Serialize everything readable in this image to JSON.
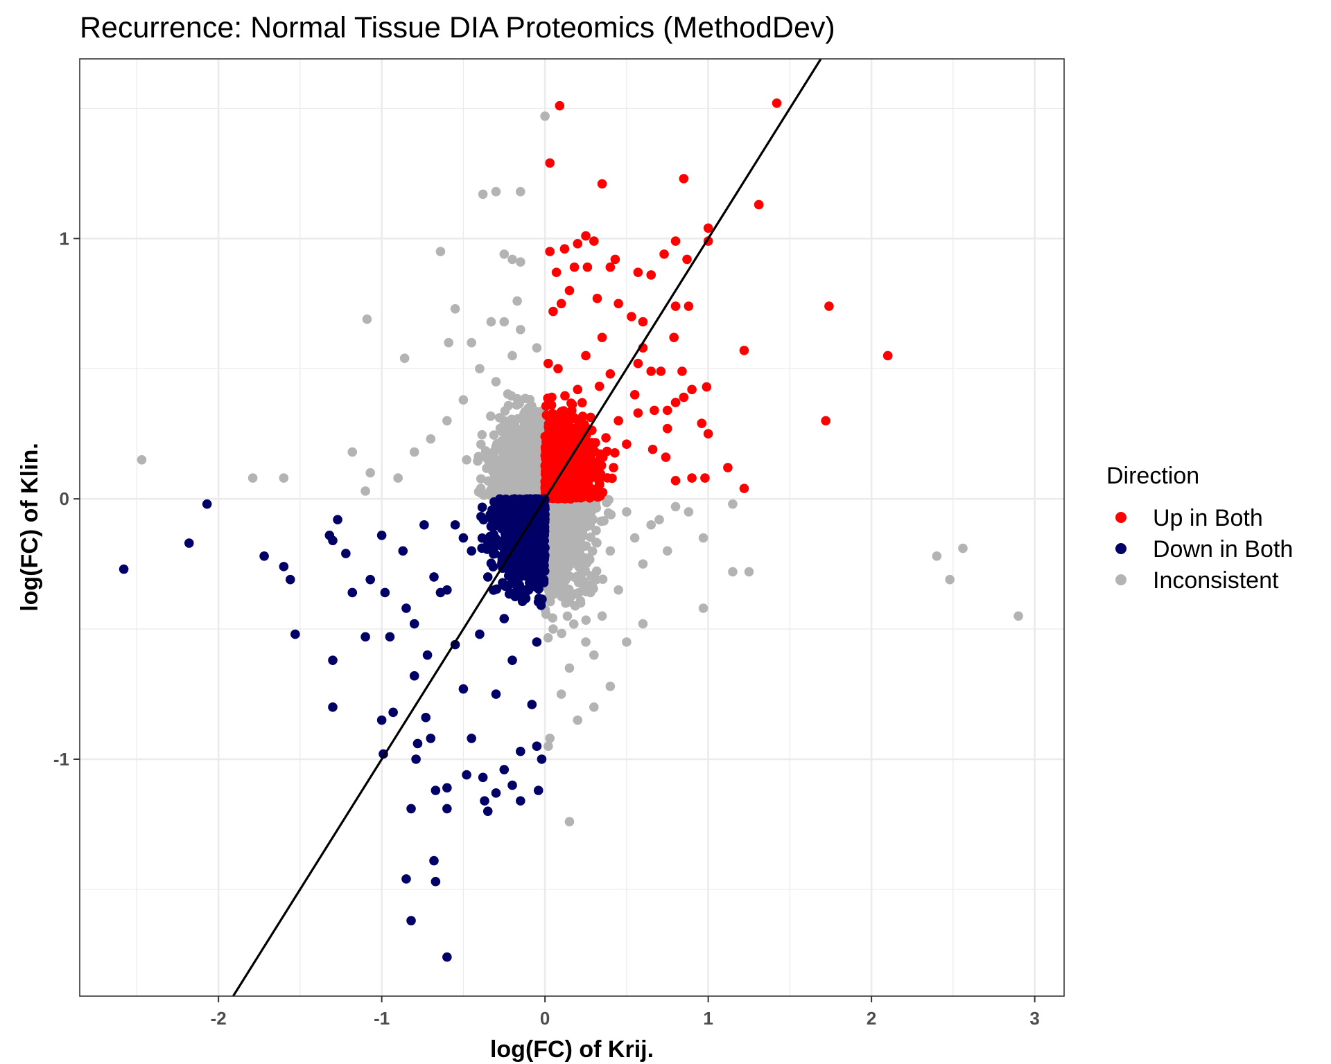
{
  "chart_data": {
    "type": "scatter",
    "title": "Recurrence: Normal Tissue DIA Proteomics (MethodDev)",
    "xlabel": "log(FC) of Krij.",
    "ylabel": "log(FC) of Klin.",
    "xlim": [
      -2.85,
      3.18
    ],
    "ylim": [
      -1.91,
      1.69
    ],
    "x_ticks": [
      -2,
      -1,
      0,
      1,
      2,
      3
    ],
    "x_tick_labels": [
      "-2",
      "-1",
      "0",
      "1",
      "2",
      "3"
    ],
    "y_ticks": [
      -1,
      0,
      1
    ],
    "y_tick_labels": [
      "-1",
      "0",
      "1"
    ],
    "grid": true,
    "legend": {
      "title": "Direction",
      "placement": "right",
      "entries": [
        "Up in Both",
        "Down in Both",
        "Inconsistent"
      ]
    },
    "reference_line": {
      "type": "abline",
      "intercept": 0,
      "slope": 1,
      "color": "#000000"
    },
    "series": [
      {
        "name": "Up in Both",
        "color": "#ff0000",
        "points": [
          [
            0.09,
            1.51
          ],
          [
            0.03,
            1.29
          ],
          [
            0.35,
            1.21
          ],
          [
            0.85,
            1.23
          ],
          [
            1.42,
            1.52
          ],
          [
            1.31,
            1.13
          ],
          [
            1.0,
            1.04
          ],
          [
            1.0,
            0.99
          ],
          [
            0.25,
            1.01
          ],
          [
            0.3,
            0.99
          ],
          [
            0.2,
            0.98
          ],
          [
            0.12,
            0.96
          ],
          [
            0.03,
            0.95
          ],
          [
            0.8,
            0.99
          ],
          [
            0.73,
            0.94
          ],
          [
            0.87,
            0.92
          ],
          [
            0.43,
            0.92
          ],
          [
            0.07,
            0.87
          ],
          [
            0.18,
            0.89
          ],
          [
            0.26,
            0.89
          ],
          [
            0.4,
            0.89
          ],
          [
            0.57,
            0.87
          ],
          [
            0.65,
            0.86
          ],
          [
            1.74,
            0.74
          ],
          [
            2.1,
            0.55
          ],
          [
            1.22,
            0.57
          ],
          [
            1.72,
            0.3
          ],
          [
            0.8,
            0.74
          ],
          [
            0.88,
            0.74
          ],
          [
            0.79,
            0.62
          ],
          [
            0.57,
            0.52
          ],
          [
            0.65,
            0.49
          ],
          [
            0.71,
            0.49
          ],
          [
            0.84,
            0.49
          ],
          [
            0.99,
            0.43
          ],
          [
            0.9,
            0.42
          ],
          [
            0.85,
            0.39
          ],
          [
            0.8,
            0.37
          ],
          [
            0.96,
            0.29
          ],
          [
            0.57,
            0.33
          ],
          [
            0.67,
            0.34
          ],
          [
            0.75,
            0.34
          ],
          [
            1.0,
            0.25
          ],
          [
            1.12,
            0.12
          ],
          [
            1.22,
            0.04
          ],
          [
            0.98,
            0.08
          ],
          [
            0.9,
            0.08
          ],
          [
            0.8,
            0.07
          ],
          [
            0.74,
            0.16
          ],
          [
            0.66,
            0.19
          ],
          [
            0.5,
            0.21
          ],
          [
            0.75,
            0.27
          ],
          [
            0.53,
            0.7
          ],
          [
            0.6,
            0.68
          ],
          [
            0.45,
            0.75
          ],
          [
            0.32,
            0.77
          ],
          [
            0.15,
            0.8
          ],
          [
            0.1,
            0.75
          ],
          [
            0.05,
            0.72
          ],
          [
            0.25,
            0.55
          ],
          [
            0.35,
            0.62
          ],
          [
            0.4,
            0.48
          ],
          [
            0.2,
            0.42
          ],
          [
            0.15,
            0.3
          ],
          [
            0.08,
            0.25
          ],
          [
            0.3,
            0.18
          ],
          [
            0.45,
            0.3
          ],
          [
            0.55,
            0.4
          ],
          [
            0.6,
            0.58
          ],
          [
            0.12,
            0.05
          ],
          [
            0.05,
            0.1
          ],
          [
            0.22,
            0.08
          ],
          [
            0.42,
            0.12
          ],
          [
            0.02,
            0.52
          ],
          [
            0.04,
            0.36
          ],
          [
            0.08,
            0.5
          ]
        ],
        "dense_region": {
          "x_range": [
            0.0,
            0.55
          ],
          "y_range": [
            0.0,
            0.55
          ],
          "approx_points": 900
        }
      },
      {
        "name": "Down in Both",
        "color": "#000066",
        "points": [
          [
            -2.58,
            -0.27
          ],
          [
            -2.07,
            -0.02
          ],
          [
            -2.18,
            -0.17
          ],
          [
            -1.72,
            -0.22
          ],
          [
            -1.6,
            -0.26
          ],
          [
            -1.56,
            -0.31
          ],
          [
            -1.53,
            -0.52
          ],
          [
            -1.32,
            -0.14
          ],
          [
            -1.3,
            -0.16
          ],
          [
            -1.27,
            -0.08
          ],
          [
            -1.22,
            -0.21
          ],
          [
            -1.18,
            -0.36
          ],
          [
            -1.3,
            -0.62
          ],
          [
            -1.3,
            -0.8
          ],
          [
            -1.1,
            -0.53
          ],
          [
            -1.07,
            -0.31
          ],
          [
            -1.0,
            -0.14
          ],
          [
            -0.98,
            -0.36
          ],
          [
            -0.95,
            -0.53
          ],
          [
            -1.0,
            -0.85
          ],
          [
            -0.99,
            -0.98
          ],
          [
            -0.93,
            -0.82
          ],
          [
            -0.87,
            -0.2
          ],
          [
            -0.85,
            -0.42
          ],
          [
            -0.8,
            -0.48
          ],
          [
            -0.8,
            -0.68
          ],
          [
            -0.78,
            -0.94
          ],
          [
            -0.79,
            -1.0
          ],
          [
            -0.82,
            -1.19
          ],
          [
            -0.85,
            -1.46
          ],
          [
            -0.82,
            -1.62
          ],
          [
            -0.68,
            -1.39
          ],
          [
            -0.67,
            -1.47
          ],
          [
            -0.6,
            -1.76
          ],
          [
            -0.67,
            -1.12
          ],
          [
            -0.6,
            -1.11
          ],
          [
            -0.6,
            -1.19
          ],
          [
            -0.7,
            -0.92
          ],
          [
            -0.73,
            -0.84
          ],
          [
            -0.72,
            -0.6
          ],
          [
            -0.68,
            -0.3
          ],
          [
            -0.74,
            -0.1
          ],
          [
            -0.64,
            -0.36
          ],
          [
            -0.55,
            -0.56
          ],
          [
            -0.5,
            -0.73
          ],
          [
            -0.45,
            -0.92
          ],
          [
            -0.48,
            -1.06
          ],
          [
            -0.38,
            -1.07
          ],
          [
            -0.37,
            -1.16
          ],
          [
            -0.35,
            -1.2
          ],
          [
            -0.3,
            -1.13
          ],
          [
            -0.25,
            -1.04
          ],
          [
            -0.2,
            -1.1
          ],
          [
            -0.15,
            -1.16
          ],
          [
            -0.04,
            -1.12
          ],
          [
            -0.15,
            -0.97
          ],
          [
            -0.05,
            -0.95
          ],
          [
            -0.02,
            -1.0
          ],
          [
            -0.08,
            -0.79
          ],
          [
            -0.3,
            -0.75
          ],
          [
            -0.4,
            -0.52
          ],
          [
            -0.25,
            -0.46
          ],
          [
            -0.35,
            -0.3
          ],
          [
            -0.2,
            -0.62
          ],
          [
            -0.1,
            -0.35
          ],
          [
            -0.45,
            -0.2
          ],
          [
            -0.55,
            -0.1
          ],
          [
            -0.3,
            -0.05
          ],
          [
            -0.15,
            -0.15
          ],
          [
            -0.05,
            -0.55
          ],
          [
            -0.6,
            -0.35
          ],
          [
            -0.5,
            -0.15
          ]
        ],
        "dense_region": {
          "x_range": [
            -0.55,
            0.0
          ],
          "y_range": [
            -0.6,
            0.0
          ],
          "approx_points": 900
        }
      },
      {
        "name": "Inconsistent",
        "color": "#b3b3b3",
        "points": [
          [
            -2.47,
            0.15
          ],
          [
            -1.79,
            0.08
          ],
          [
            -1.6,
            0.08
          ],
          [
            -1.18,
            0.18
          ],
          [
            -1.07,
            0.1
          ],
          [
            -1.1,
            0.03
          ],
          [
            -1.09,
            0.69
          ],
          [
            -0.86,
            0.54
          ],
          [
            -0.64,
            0.95
          ],
          [
            -0.59,
            0.6
          ],
          [
            -0.55,
            0.73
          ],
          [
            -0.38,
            1.17
          ],
          [
            -0.3,
            1.18
          ],
          [
            -0.15,
            1.18
          ],
          [
            -0.25,
            0.94
          ],
          [
            -0.2,
            0.92
          ],
          [
            -0.15,
            0.91
          ],
          [
            -0.17,
            0.76
          ],
          [
            -0.33,
            0.68
          ],
          [
            -0.25,
            0.68
          ],
          [
            -0.15,
            0.65
          ],
          [
            0.0,
            1.47
          ],
          [
            -0.45,
            0.6
          ],
          [
            -0.6,
            0.3
          ],
          [
            -0.7,
            0.23
          ],
          [
            -0.8,
            0.18
          ],
          [
            -0.9,
            0.08
          ],
          [
            -0.4,
            0.5
          ],
          [
            -0.3,
            0.45
          ],
          [
            -0.2,
            0.55
          ],
          [
            -0.1,
            0.35
          ],
          [
            -0.05,
            0.58
          ],
          [
            -0.5,
            0.38
          ],
          [
            -0.48,
            0.15
          ],
          [
            -0.3,
            0.2
          ],
          [
            0.03,
            -0.92
          ],
          [
            0.02,
            -0.95
          ],
          [
            0.15,
            -1.24
          ],
          [
            0.1,
            -0.75
          ],
          [
            0.2,
            -0.85
          ],
          [
            0.3,
            -0.8
          ],
          [
            0.4,
            -0.72
          ],
          [
            0.3,
            -0.6
          ],
          [
            0.5,
            -0.55
          ],
          [
            0.45,
            -0.35
          ],
          [
            0.6,
            -0.25
          ],
          [
            0.75,
            -0.2
          ],
          [
            0.8,
            -0.03
          ],
          [
            0.88,
            -0.05
          ],
          [
            0.97,
            -0.42
          ],
          [
            0.97,
            -0.15
          ],
          [
            0.6,
            -0.48
          ],
          [
            1.15,
            -0.02
          ],
          [
            1.15,
            -0.28
          ],
          [
            1.25,
            -0.28
          ],
          [
            2.4,
            -0.22
          ],
          [
            2.48,
            -0.31
          ],
          [
            2.56,
            -0.19
          ],
          [
            2.9,
            -0.45
          ],
          [
            0.65,
            -0.1
          ],
          [
            0.5,
            -0.05
          ],
          [
            0.4,
            -0.2
          ],
          [
            0.2,
            -0.3
          ],
          [
            0.1,
            -0.15
          ],
          [
            0.05,
            -0.5
          ],
          [
            0.25,
            -0.55
          ],
          [
            0.35,
            -0.45
          ],
          [
            0.55,
            -0.15
          ],
          [
            0.7,
            -0.08
          ],
          [
            0.15,
            -0.65
          ],
          [
            0.08,
            -0.05
          ],
          [
            -0.15,
            0.1
          ],
          [
            -0.05,
            0.2
          ],
          [
            -0.25,
            0.3
          ]
        ],
        "dense_regions": [
          {
            "x_range": [
              -0.6,
              0.0
            ],
            "y_range": [
              0.0,
              0.6
            ],
            "approx_points": 700
          },
          {
            "x_range": [
              0.0,
              0.55
            ],
            "y_range": [
              -0.7,
              0.0
            ],
            "approx_points": 700
          }
        ]
      }
    ]
  }
}
